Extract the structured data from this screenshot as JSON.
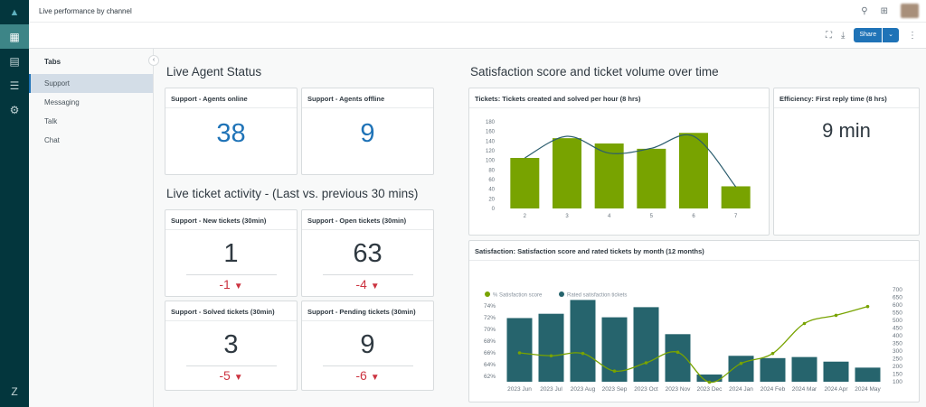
{
  "header": {
    "title": "Live performance by channel"
  },
  "toolbar": {
    "share_label": "Share"
  },
  "rail": {
    "icons": [
      "zendesk-explore-logo",
      "dashboard-icon",
      "reports-icon",
      "datasets-icon",
      "settings-icon",
      "zendesk-logo"
    ]
  },
  "tabs": {
    "heading": "Tabs",
    "items": [
      {
        "label": "Support",
        "selected": true
      },
      {
        "label": "Messaging"
      },
      {
        "label": "Talk"
      },
      {
        "label": "Chat"
      }
    ]
  },
  "sections": {
    "agent_status": "Live Agent Status",
    "ticket_activity": "Live ticket activity - (Last vs. previous 30 mins)",
    "satisfaction": "Satisfaction score and ticket volume over time"
  },
  "cards": {
    "agents_online": {
      "title": "Support - Agents online",
      "value": "38"
    },
    "agents_offline": {
      "title": "Support - Agents offline",
      "value": "9"
    },
    "new_tickets": {
      "title": "Support - New tickets (30min)",
      "value": "1",
      "delta": "-1"
    },
    "open_tickets": {
      "title": "Support - Open tickets (30min)",
      "value": "63",
      "delta": "-4"
    },
    "solved_tickets": {
      "title": "Support - Solved tickets (30min)",
      "value": "3",
      "delta": "-5"
    },
    "pending_tickets": {
      "title": "Support - Pending tickets (30min)",
      "value": "9",
      "delta": "-6"
    },
    "first_reply": {
      "title": "Efficiency: First reply time (8 hrs)",
      "value": "9 min"
    },
    "tickets_chart": {
      "title": "Tickets: Tickets created and solved per hour (8 hrs)"
    },
    "satisfaction_chart": {
      "title": "Satisfaction: Satisfaction score and rated tickets by month (12 months)"
    }
  },
  "colors": {
    "accent": "#1f73b7",
    "bar_green": "#78a300",
    "bar_teal": "#26646d",
    "line_teal": "#2b5d6e",
    "negative": "#cc3340"
  },
  "chart_data": [
    {
      "type": "bar",
      "categories": [
        "2",
        "3",
        "4",
        "5",
        "6",
        "7"
      ],
      "series": [
        {
          "type": "bar",
          "values": [
            105,
            146,
            135,
            124,
            157,
            46
          ]
        },
        {
          "type": "line",
          "values": [
            105,
            150,
            115,
            125,
            150,
            45
          ]
        }
      ],
      "ylim": [
        0,
        180
      ],
      "yticks": [
        0,
        20,
        40,
        60,
        80,
        100,
        120,
        140,
        160,
        180
      ]
    },
    {
      "type": "bar",
      "categories": [
        "2023 Jun",
        "2023 Jul",
        "2023 Aug",
        "2023 Sep",
        "2023 Oct",
        "2023 Nov",
        "2023 Dec",
        "2024 Jan",
        "2024 Feb",
        "2024 Mar",
        "2024 Apr",
        "2024 May"
      ],
      "series": [
        {
          "name": "Rated satisfaction tickets",
          "type": "bar",
          "axis": "right",
          "values": [
            515,
            543,
            633,
            520,
            586,
            410,
            147,
            269,
            254,
            261,
            231,
            192
          ]
        },
        {
          "name": "% Satisfaction score",
          "type": "line",
          "axis": "left",
          "values": [
            66.0,
            65.5,
            65.9,
            62.9,
            64.3,
            66.1,
            61.0,
            64.2,
            65.9,
            71.0,
            72.4,
            73.9
          ]
        }
      ],
      "y_left": {
        "ticks": [
          "62%",
          "64%",
          "66%",
          "68%",
          "70%",
          "72%",
          "74%"
        ],
        "range": [
          62,
          74
        ]
      },
      "y_right": {
        "ticks": [
          100,
          150,
          200,
          250,
          300,
          350,
          400,
          450,
          500,
          550,
          600,
          650,
          700
        ],
        "range": [
          100,
          700
        ]
      },
      "legend": "top-left"
    }
  ]
}
